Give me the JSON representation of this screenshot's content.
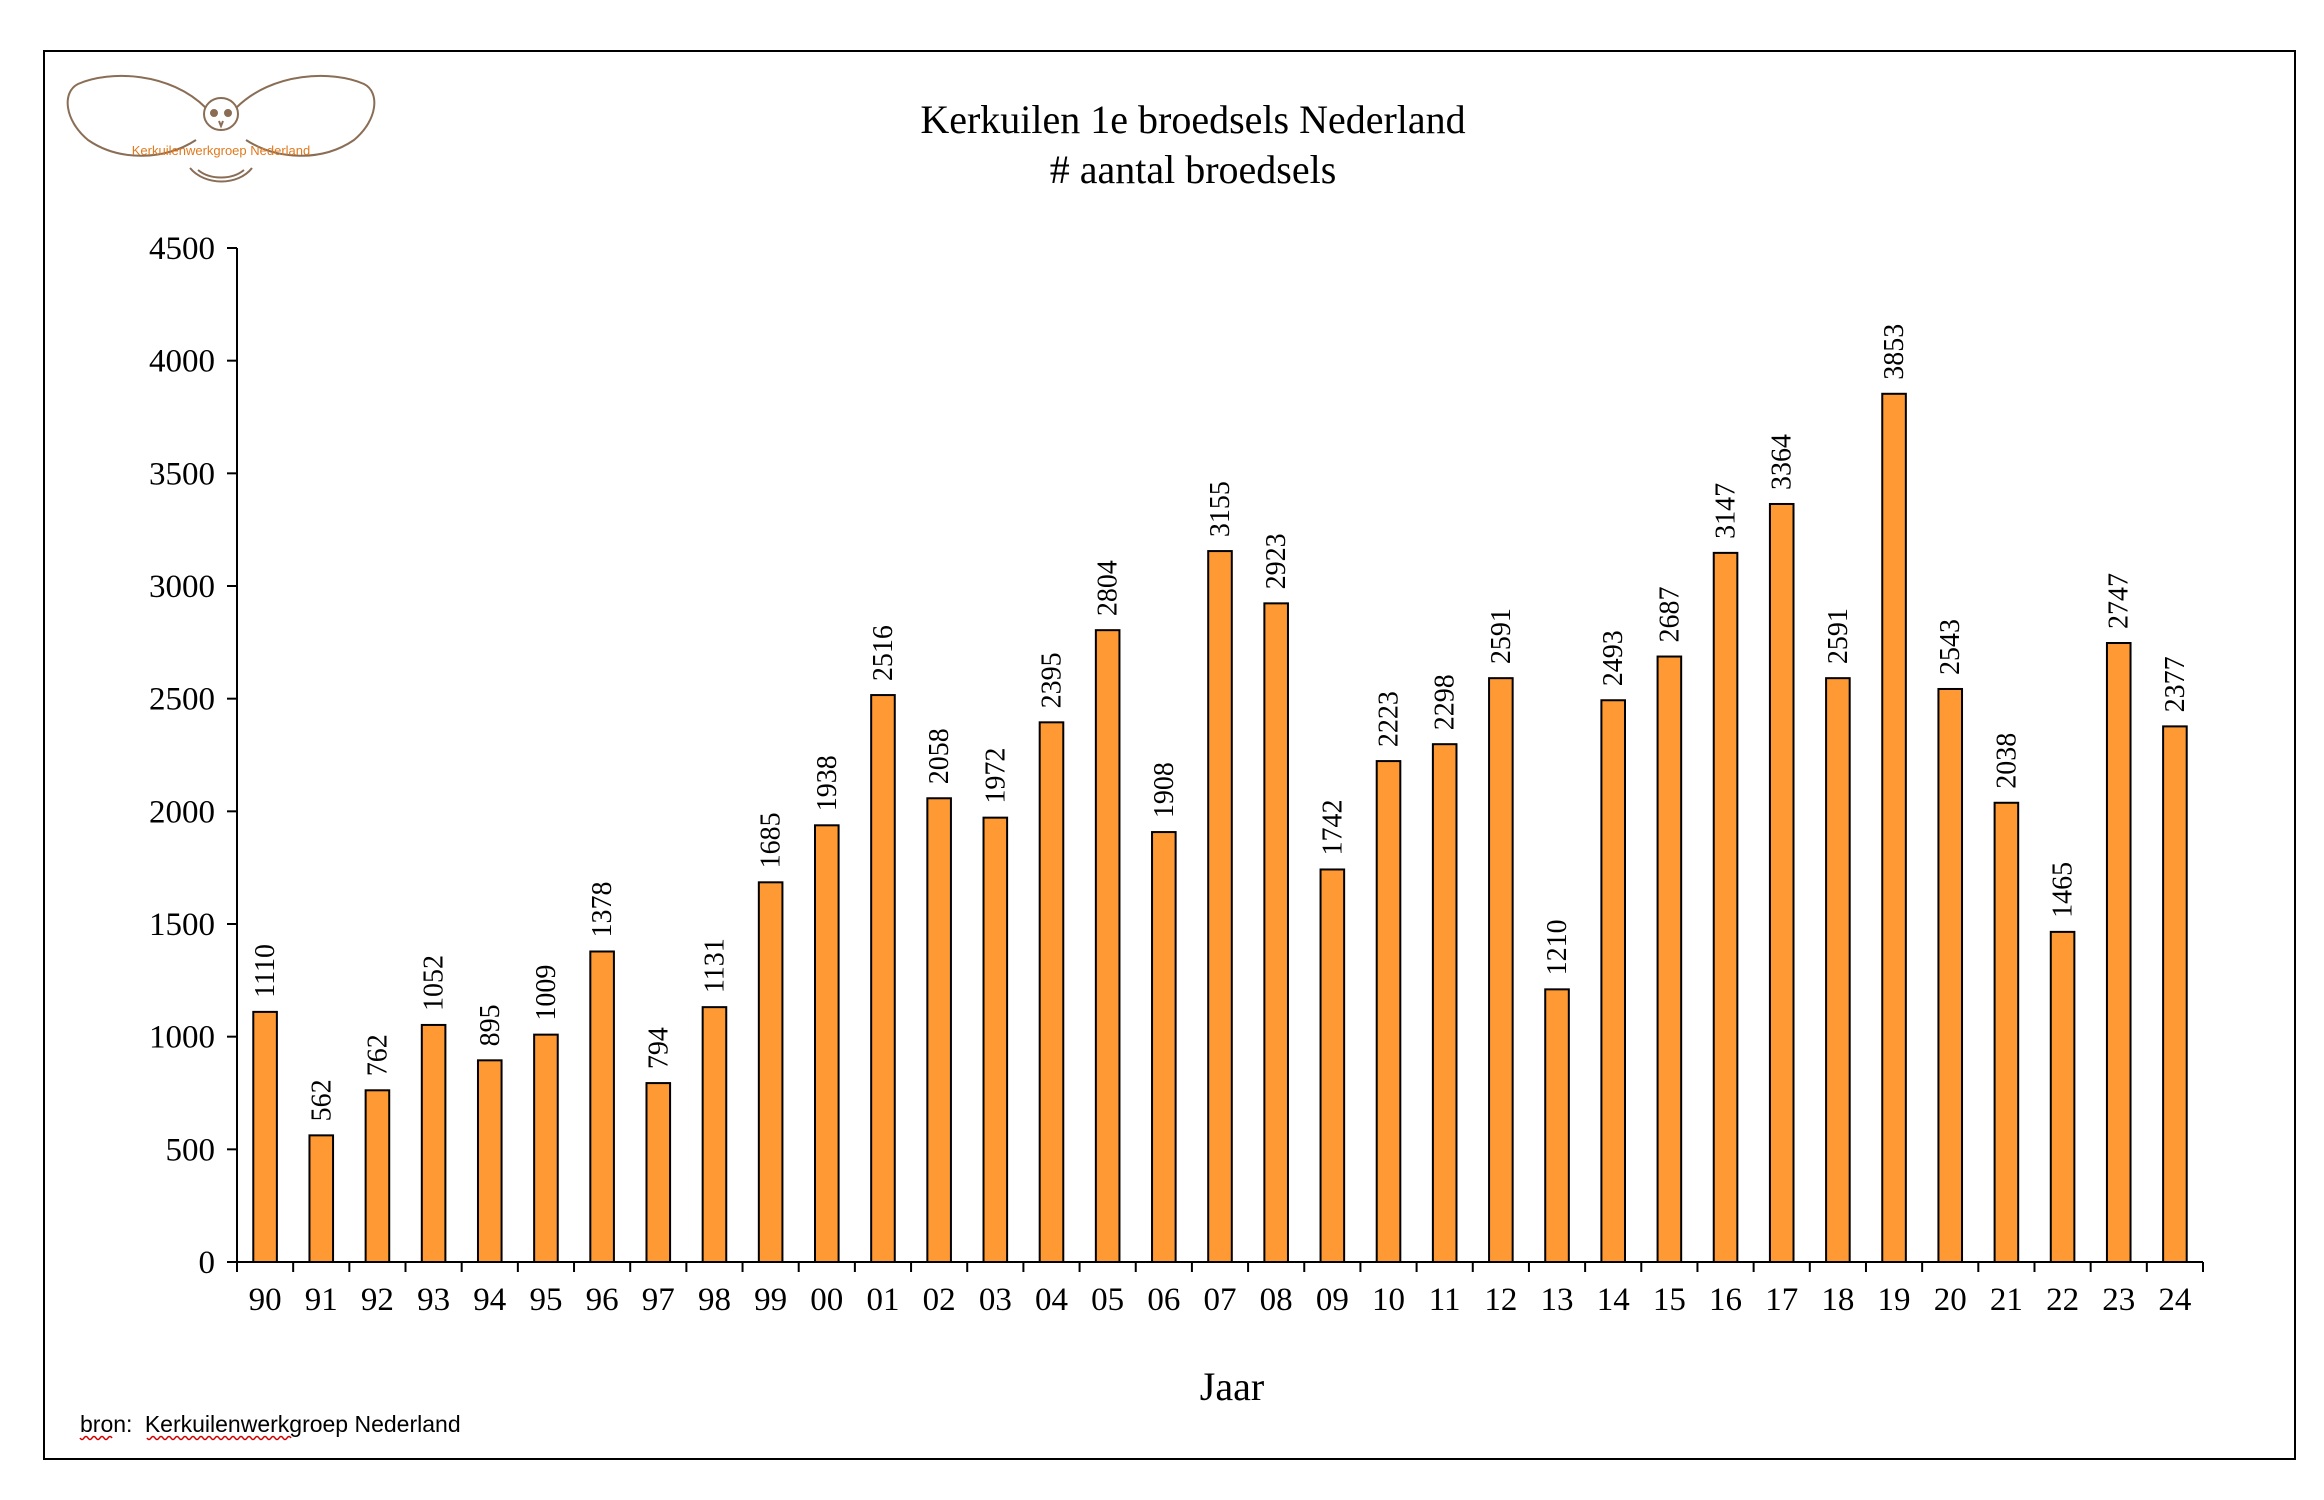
{
  "chart_data": {
    "type": "bar",
    "title": "Kerkuilen 1e broedsels Nederland",
    "subtitle": "# aantal broedsels",
    "xlabel": "Jaar",
    "ylabel": "",
    "ylim": [
      0,
      4500
    ],
    "yticks": [
      0,
      500,
      1000,
      1500,
      2000,
      2500,
      3000,
      3500,
      4000,
      4500
    ],
    "grid": false,
    "bar_color": "#ff9933",
    "categories": [
      "90",
      "91",
      "92",
      "93",
      "94",
      "95",
      "96",
      "97",
      "98",
      "99",
      "00",
      "01",
      "02",
      "03",
      "04",
      "05",
      "06",
      "07",
      "08",
      "09",
      "10",
      "11",
      "12",
      "13",
      "14",
      "15",
      "16",
      "17",
      "18",
      "19",
      "20",
      "21",
      "22",
      "23",
      "24"
    ],
    "values": [
      1110,
      562,
      762,
      1052,
      895,
      1009,
      1378,
      794,
      1131,
      1685,
      1938,
      2516,
      2058,
      1972,
      2395,
      2804,
      1908,
      3155,
      2923,
      1742,
      2223,
      2298,
      2591,
      1210,
      2493,
      2687,
      3147,
      3364,
      2591,
      3853,
      2543,
      2038,
      1465,
      2747,
      2377
    ]
  },
  "source": {
    "prefix": "bron:",
    "name": "Kerkuilenwerkgroep Nederland"
  },
  "logo": {
    "text": "Kerkuilenwerkgroep Nederland",
    "icon": "owl-icon",
    "color": "#e07a1f"
  }
}
